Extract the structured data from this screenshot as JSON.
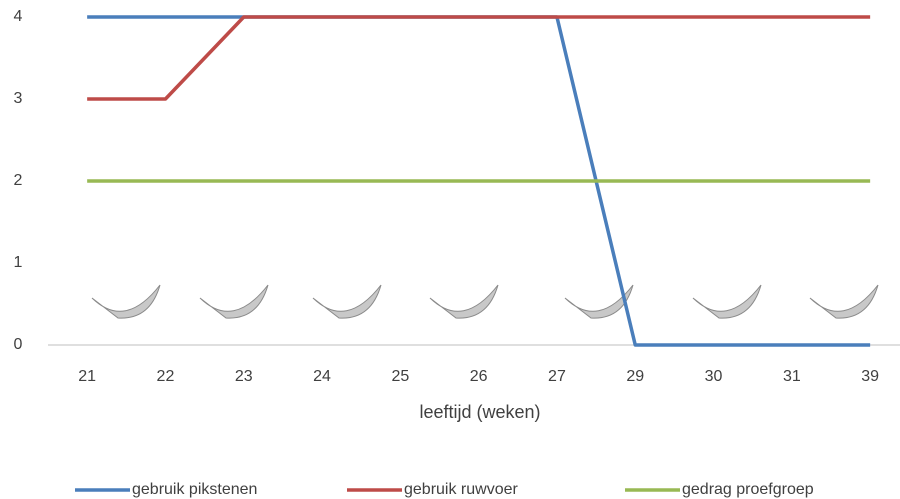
{
  "chart_data": {
    "type": "line",
    "x_label": "leeftijd (weken)",
    "categories": [
      "21",
      "22",
      "23",
      "24",
      "25",
      "26",
      "27",
      "29",
      "30",
      "31",
      "39"
    ],
    "series": [
      {
        "name": "gebruik pikstenen",
        "color": "#4a7ebb",
        "values": [
          4,
          4,
          4,
          4,
          4,
          4,
          4,
          0,
          0,
          0,
          0
        ]
      },
      {
        "name": "gebruik ruwvoer",
        "color": "#be4b48",
        "values": [
          3,
          3,
          4,
          4,
          4,
          4,
          4,
          4,
          4,
          4,
          4
        ]
      },
      {
        "name": "gedrag proefgroep",
        "color": "#98b954",
        "values": [
          2,
          2,
          2,
          2,
          2,
          2,
          2,
          2,
          2,
          2,
          2
        ]
      }
    ],
    "ylim": [
      0,
      4
    ],
    "yticks": [
      0,
      1,
      2,
      3,
      4
    ],
    "grid": false,
    "legend": "bottom"
  }
}
